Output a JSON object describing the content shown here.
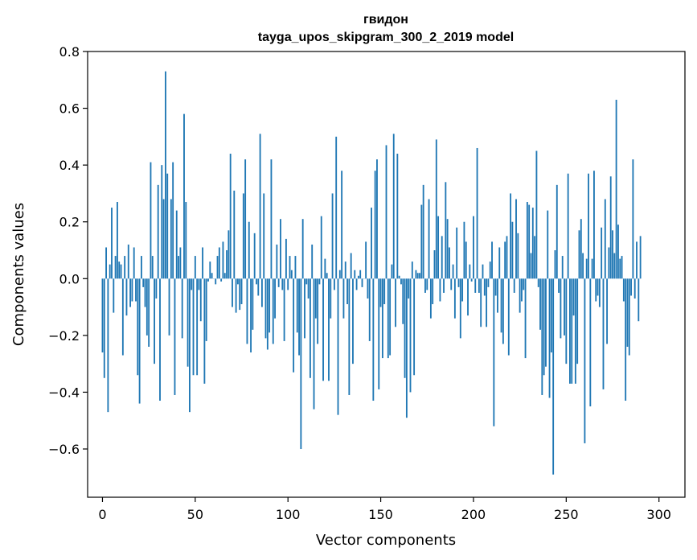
{
  "chart_data": {
    "type": "bar",
    "title_line1": "гвидон",
    "title_line2": "tayga_upos_skipgram_300_2_2019 model",
    "xlabel": "Vector components",
    "ylabel": "Components values",
    "xlim": [
      -8,
      314
    ],
    "ylim": [
      -0.77,
      0.8
    ],
    "xticks": [
      0,
      50,
      100,
      150,
      200,
      250,
      300
    ],
    "xtick_labels": [
      "0",
      "50",
      "100",
      "150",
      "200",
      "250",
      "300"
    ],
    "yticks": [
      -0.6,
      -0.4,
      -0.2,
      0.0,
      0.2,
      0.4,
      0.6,
      0.8
    ],
    "ytick_labels": [
      "−0.6",
      "−0.4",
      "−0.2",
      "0.0",
      "0.2",
      "0.4",
      "0.6",
      "0.8"
    ],
    "bar_color": "#1f77b4",
    "grid": false,
    "values": [
      -0.26,
      -0.35,
      0.11,
      -0.47,
      0.05,
      0.25,
      -0.12,
      0.08,
      0.27,
      0.06,
      0.05,
      -0.27,
      0.08,
      -0.13,
      0.12,
      -0.1,
      -0.08,
      0.11,
      -0.08,
      -0.34,
      -0.44,
      0.08,
      -0.03,
      -0.1,
      -0.2,
      -0.24,
      0.41,
      0.08,
      -0.3,
      -0.07,
      0.33,
      -0.43,
      0.4,
      0.28,
      0.73,
      0.37,
      -0.2,
      0.28,
      0.41,
      -0.41,
      0.24,
      0.08,
      0.11,
      -0.21,
      0.58,
      0.27,
      -0.31,
      -0.47,
      -0.04,
      -0.34,
      0.08,
      -0.34,
      -0.04,
      -0.15,
      0.11,
      -0.37,
      -0.22,
      -0.01,
      0.06,
      0.02,
      0.0,
      -0.02,
      0.08,
      0.11,
      -0.01,
      0.13,
      0.02,
      0.1,
      0.17,
      0.44,
      -0.1,
      0.31,
      -0.12,
      -0.02,
      -0.11,
      -0.09,
      0.3,
      0.42,
      -0.23,
      0.2,
      -0.26,
      -0.18,
      0.16,
      -0.02,
      -0.06,
      0.51,
      -0.1,
      0.3,
      -0.21,
      -0.25,
      -0.19,
      0.42,
      -0.23,
      -0.14,
      0.12,
      -0.03,
      0.21,
      -0.04,
      -0.22,
      0.14,
      -0.04,
      0.08,
      0.03,
      -0.33,
      0.08,
      -0.19,
      -0.27,
      -0.6,
      0.21,
      -0.21,
      -0.02,
      -0.07,
      -0.35,
      0.12,
      -0.46,
      -0.14,
      -0.23,
      -0.02,
      0.22,
      -0.36,
      0.07,
      0.02,
      -0.36,
      -0.14,
      0.3,
      -0.04,
      0.5,
      -0.48,
      0.03,
      0.38,
      -0.14,
      0.06,
      -0.09,
      -0.41,
      0.09,
      -0.3,
      0.03,
      -0.04,
      0.01,
      0.03,
      -0.03,
      0.0,
      0.13,
      -0.07,
      -0.22,
      0.25,
      -0.43,
      0.38,
      0.42,
      -0.39,
      -0.1,
      -0.28,
      -0.09,
      0.47,
      -0.28,
      -0.27,
      0.05,
      0.51,
      -0.17,
      0.44,
      0.01,
      -0.02,
      -0.16,
      -0.35,
      -0.49,
      -0.07,
      -0.4,
      0.06,
      -0.34,
      0.03,
      0.02,
      0.02,
      0.26,
      0.33,
      -0.05,
      -0.04,
      0.28,
      -0.14,
      -0.09,
      0.1,
      0.49,
      0.22,
      -0.08,
      0.15,
      -0.05,
      0.34,
      0.21,
      0.11,
      -0.04,
      0.05,
      -0.14,
      0.18,
      -0.03,
      -0.21,
      -0.08,
      0.2,
      0.13,
      -0.13,
      0.05,
      -0.01,
      0.22,
      -0.05,
      0.46,
      -0.05,
      -0.17,
      0.05,
      -0.06,
      -0.17,
      -0.03,
      0.06,
      0.13,
      -0.52,
      -0.06,
      -0.12,
      0.11,
      -0.19,
      -0.23,
      0.13,
      0.15,
      -0.27,
      0.3,
      0.2,
      -0.05,
      0.28,
      0.16,
      -0.12,
      -0.08,
      -0.04,
      -0.28,
      0.27,
      0.26,
      0.09,
      0.25,
      0.15,
      0.45,
      -0.03,
      -0.18,
      -0.41,
      -0.34,
      -0.31,
      0.24,
      -0.42,
      -0.26,
      -0.69,
      0.1,
      0.33,
      -0.05,
      -0.21,
      0.08,
      -0.2,
      -0.3,
      0.37,
      -0.37,
      -0.37,
      -0.13,
      -0.37,
      -0.3,
      0.17,
      0.21,
      0.09,
      -0.58,
      0.07,
      0.37,
      -0.45,
      0.07,
      0.38,
      -0.08,
      -0.06,
      -0.1,
      0.18,
      -0.39,
      0.28,
      -0.23,
      0.11,
      0.36,
      0.17,
      0.09,
      0.63,
      0.19,
      0.07,
      0.08,
      -0.08,
      -0.43,
      -0.24,
      -0.27,
      -0.06,
      0.42,
      -0.07,
      0.13,
      -0.15,
      0.15
    ]
  }
}
